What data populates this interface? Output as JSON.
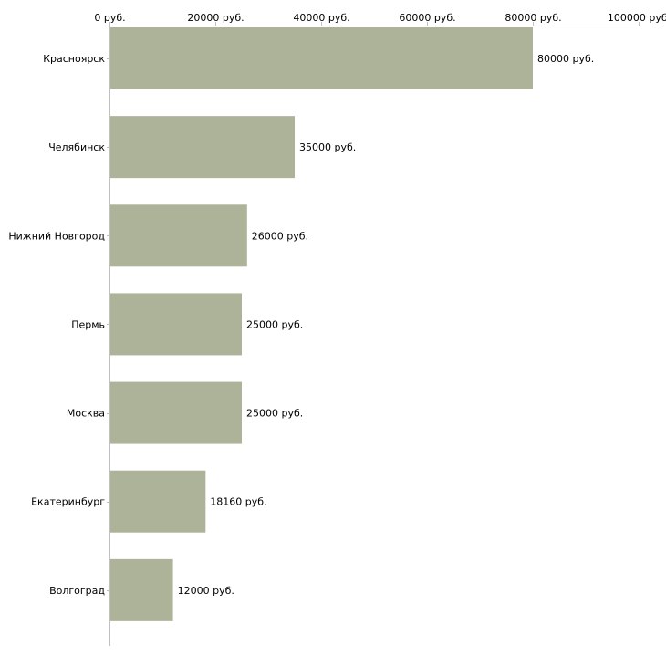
{
  "chart_data": {
    "type": "bar",
    "orientation": "horizontal",
    "title": "",
    "xlabel": "",
    "ylabel": "",
    "xlim": [
      0,
      100000
    ],
    "grid": false,
    "legend": "none",
    "x_ticks": [
      0,
      20000,
      40000,
      60000,
      80000,
      100000
    ],
    "x_tick_labels": [
      "0 руб.",
      "20000 руб.",
      "40000 руб.",
      "60000 руб.",
      "80000 руб.",
      "100000 руб."
    ],
    "categories": [
      "Красноярск",
      "Челябинск",
      "Нижний Новгород",
      "Пермь",
      "Москва",
      "Екатеринбург",
      "Волгоград"
    ],
    "values": [
      80000,
      35000,
      26000,
      25000,
      25000,
      18160,
      12000
    ],
    "value_labels": [
      "80000 руб.",
      "35000 руб.",
      "26000 руб.",
      "25000 руб.",
      "25000 руб.",
      "18160 руб.",
      "12000 руб."
    ]
  },
  "colors": {
    "bar": "#adb399",
    "axis": "#c0c0c0",
    "text": "#000000"
  }
}
